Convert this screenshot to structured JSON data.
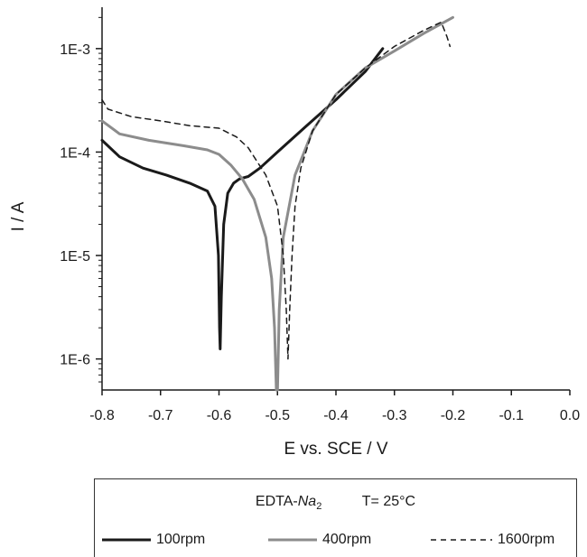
{
  "chart_data": {
    "type": "line",
    "title": "",
    "xlabel": "E vs. SCE / V",
    "ylabel": "I / A",
    "xlim": [
      -0.8,
      0.0
    ],
    "ylim_log10": [
      -6.3,
      -2.6
    ],
    "y_scale": "log",
    "x_ticks": [
      "-0.8",
      "-0.7",
      "-0.6",
      "-0.5",
      "-0.4",
      "-0.3",
      "-0.2",
      "-0.1",
      "0.0"
    ],
    "y_ticks": [
      "1E-6",
      "1E-5",
      "1E-4",
      "1E-3"
    ],
    "series": [
      {
        "name": "100rpm",
        "color": "#1a1a1a",
        "style": "solid",
        "points": [
          [
            -0.8,
            0.00013
          ],
          [
            -0.77,
            9e-05
          ],
          [
            -0.73,
            7e-05
          ],
          [
            -0.69,
            6e-05
          ],
          [
            -0.65,
            5e-05
          ],
          [
            -0.62,
            4.2e-05
          ],
          [
            -0.607,
            3e-05
          ],
          [
            -0.601,
            1e-05
          ],
          [
            -0.599,
            2e-06
          ],
          [
            -0.598,
            1.25e-06
          ],
          [
            -0.596,
            4e-06
          ],
          [
            -0.592,
            2e-05
          ],
          [
            -0.585,
            4e-05
          ],
          [
            -0.575,
            5e-05
          ],
          [
            -0.565,
            5.5e-05
          ],
          [
            -0.55,
            5.8e-05
          ],
          [
            -0.53,
            7e-05
          ],
          [
            -0.5,
            0.0001
          ],
          [
            -0.45,
            0.00018
          ],
          [
            -0.4,
            0.00032
          ],
          [
            -0.35,
            0.0006
          ],
          [
            -0.32,
            0.001
          ]
        ]
      },
      {
        "name": "400rpm",
        "color": "#8c8c8c",
        "style": "solid",
        "points": [
          [
            -0.8,
            0.0002
          ],
          [
            -0.77,
            0.00015
          ],
          [
            -0.72,
            0.00013
          ],
          [
            -0.66,
            0.000115
          ],
          [
            -0.62,
            0.000105
          ],
          [
            -0.6,
            9.5e-05
          ],
          [
            -0.58,
            7.5e-05
          ],
          [
            -0.56,
            5.5e-05
          ],
          [
            -0.54,
            3.5e-05
          ],
          [
            -0.52,
            1.5e-05
          ],
          [
            -0.51,
            6e-06
          ],
          [
            -0.505,
            2e-06
          ],
          [
            -0.502,
            5e-07
          ],
          [
            -0.5,
            5e-07
          ],
          [
            -0.497,
            3e-06
          ],
          [
            -0.49,
            1.5e-05
          ],
          [
            -0.47,
            6e-05
          ],
          [
            -0.44,
            0.00016
          ],
          [
            -0.4,
            0.00036
          ],
          [
            -0.35,
            0.00065
          ],
          [
            -0.3,
            0.00095
          ],
          [
            -0.25,
            0.0014
          ],
          [
            -0.2,
            0.002
          ]
        ]
      },
      {
        "name": "1600rpm",
        "color": "#1a1a1a",
        "style": "dashed",
        "points": [
          [
            -0.8,
            0.00032
          ],
          [
            -0.79,
            0.00026
          ],
          [
            -0.75,
            0.00022
          ],
          [
            -0.7,
            0.0002
          ],
          [
            -0.65,
            0.00018
          ],
          [
            -0.6,
            0.00017
          ],
          [
            -0.57,
            0.00014
          ],
          [
            -0.55,
            0.00011
          ],
          [
            -0.52,
            6e-05
          ],
          [
            -0.5,
            3e-05
          ],
          [
            -0.49,
            1e-05
          ],
          [
            -0.485,
            3e-06
          ],
          [
            -0.482,
            1e-06
          ],
          [
            -0.479,
            3e-06
          ],
          [
            -0.475,
            1e-05
          ],
          [
            -0.47,
            3e-05
          ],
          [
            -0.46,
            7e-05
          ],
          [
            -0.44,
            0.00016
          ],
          [
            -0.4,
            0.00036
          ],
          [
            -0.35,
            0.00065
          ],
          [
            -0.3,
            0.00105
          ],
          [
            -0.25,
            0.0015
          ],
          [
            -0.22,
            0.0018
          ],
          [
            -0.21,
            0.0013
          ],
          [
            -0.205,
            0.00105
          ]
        ]
      }
    ]
  },
  "legend": {
    "compound_prefix": "EDTA-",
    "compound_symbol": "Na",
    "compound_subscript": "2",
    "condition": "T= 25°C",
    "entries": [
      {
        "label": "100rpm",
        "color": "#1a1a1a",
        "style": "solid"
      },
      {
        "label": "400rpm",
        "color": "#8c8c8c",
        "style": "solid"
      },
      {
        "label": "1600rpm",
        "color": "#1a1a1a",
        "style": "dashed"
      }
    ]
  }
}
